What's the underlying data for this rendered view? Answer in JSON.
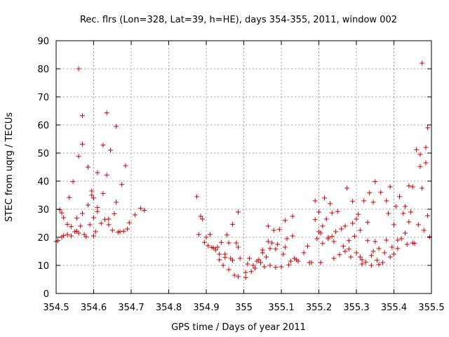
{
  "chart_data": {
    "type": "scatter",
    "title": "Rec. flrs (Lon=328, Lat=39, h=HE), days 354-355, 2011, window 002",
    "xlabel": "GPS time / Days of year 2011",
    "ylabel": "STEC from uqrg / TECUs",
    "xlim": [
      354.5,
      355.5
    ],
    "ylim": [
      0,
      90
    ],
    "x_ticks": [
      354.5,
      354.6,
      354.7,
      354.8,
      354.9,
      355,
      355.1,
      355.2,
      355.3,
      355.4,
      355.5
    ],
    "x_tick_labels": [
      "354.5",
      "354.6",
      "354.7",
      "354.8",
      "354.9",
      "355",
      "355.1",
      "355.2",
      "355.3",
      "355.4",
      "355.5"
    ],
    "y_ticks": [
      0,
      10,
      20,
      30,
      40,
      50,
      60,
      70,
      80,
      90
    ],
    "y_tick_labels": [
      "0",
      "10",
      "20",
      "30",
      "40",
      "50",
      "60",
      "70",
      "80",
      "90"
    ],
    "grid": true,
    "marker": "plus",
    "color": "#cc0000",
    "series": [
      {
        "points": [
          [
            354.5,
            18.5
          ],
          [
            354.505,
            18.8
          ],
          [
            354.51,
            29.8
          ],
          [
            354.515,
            28.7
          ],
          [
            354.515,
            20.1
          ],
          [
            354.52,
            27
          ],
          [
            354.52,
            20.6
          ],
          [
            354.53,
            21
          ],
          [
            354.53,
            24.6
          ],
          [
            354.535,
            34.2
          ],
          [
            354.54,
            20.5
          ],
          [
            354.54,
            23.8
          ],
          [
            354.545,
            39.8
          ],
          [
            354.55,
            22
          ],
          [
            354.555,
            26.8
          ],
          [
            354.555,
            22.2
          ],
          [
            354.56,
            80
          ],
          [
            354.56,
            48.8
          ],
          [
            354.56,
            21.5
          ],
          [
            354.565,
            24
          ],
          [
            354.57,
            63.3
          ],
          [
            354.57,
            53.2
          ],
          [
            354.57,
            28.5
          ],
          [
            354.575,
            21
          ],
          [
            354.58,
            20.2
          ],
          [
            354.585,
            45
          ],
          [
            354.585,
            31.5
          ],
          [
            354.59,
            24.5
          ],
          [
            354.595,
            35
          ],
          [
            354.595,
            36.5
          ],
          [
            354.6,
            34
          ],
          [
            354.6,
            20.5
          ],
          [
            354.6,
            27
          ],
          [
            354.605,
            22
          ],
          [
            354.61,
            30.6
          ],
          [
            354.61,
            43
          ],
          [
            354.61,
            29.2
          ],
          [
            354.62,
            25
          ],
          [
            354.625,
            52.8
          ],
          [
            354.625,
            35.6
          ],
          [
            354.63,
            26.3
          ],
          [
            354.635,
            64.3
          ],
          [
            354.635,
            42.2
          ],
          [
            354.64,
            24.5
          ],
          [
            354.64,
            26.5
          ],
          [
            354.645,
            51
          ],
          [
            354.65,
            22.5
          ],
          [
            354.655,
            28.4
          ],
          [
            354.66,
            59.5
          ],
          [
            354.66,
            32.5
          ],
          [
            354.665,
            21.8
          ],
          [
            354.67,
            22
          ],
          [
            354.675,
            38.8
          ],
          [
            354.68,
            22.2
          ],
          [
            354.685,
            45.5
          ],
          [
            354.69,
            23
          ],
          [
            354.695,
            25.2
          ],
          [
            354.71,
            28
          ],
          [
            354.725,
            30.3
          ],
          [
            354.735,
            29.6
          ],
          [
            354.875,
            34.5
          ],
          [
            354.88,
            21
          ],
          [
            354.885,
            27.5
          ],
          [
            354.89,
            26.5
          ],
          [
            354.895,
            18.2
          ],
          [
            354.9,
            20
          ],
          [
            354.905,
            17
          ],
          [
            354.91,
            21
          ],
          [
            354.915,
            16.4
          ],
          [
            354.92,
            16.2
          ],
          [
            354.925,
            15.5
          ],
          [
            354.93,
            16.5
          ],
          [
            354.935,
            14
          ],
          [
            354.935,
            12
          ],
          [
            354.94,
            18.2
          ],
          [
            354.945,
            10
          ],
          [
            354.95,
            14
          ],
          [
            354.95,
            12.8
          ],
          [
            354.955,
            20.8
          ],
          [
            354.96,
            18
          ],
          [
            354.96,
            8.5
          ],
          [
            354.965,
            12.5
          ],
          [
            354.97,
            24.6
          ],
          [
            354.97,
            11.8
          ],
          [
            354.975,
            6.5
          ],
          [
            354.98,
            18
          ],
          [
            354.985,
            29
          ],
          [
            354.985,
            16.5
          ],
          [
            354.985,
            6
          ],
          [
            354.99,
            12.5
          ],
          [
            355.005,
            5.7
          ],
          [
            355.005,
            7.5
          ],
          [
            355.01,
            10.5
          ],
          [
            355.015,
            12.5
          ],
          [
            355.02,
            7.8
          ],
          [
            355.025,
            10
          ],
          [
            355.03,
            9
          ],
          [
            355.035,
            11.5
          ],
          [
            355.04,
            12
          ],
          [
            355.045,
            11
          ],
          [
            355.05,
            14.5
          ],
          [
            355.05,
            15.5
          ],
          [
            355.055,
            9.5
          ],
          [
            355.06,
            13
          ],
          [
            355.065,
            24
          ],
          [
            355.065,
            18.5
          ],
          [
            355.07,
            16
          ],
          [
            355.07,
            10
          ],
          [
            355.075,
            18
          ],
          [
            355.08,
            22.5
          ],
          [
            355.085,
            15.8
          ],
          [
            355.085,
            9.3
          ],
          [
            355.09,
            17.5
          ],
          [
            355.095,
            22.8
          ],
          [
            355.1,
            9.5
          ],
          [
            355.105,
            14
          ],
          [
            355.11,
            16.5
          ],
          [
            355.11,
            26
          ],
          [
            355.115,
            19.5
          ],
          [
            355.12,
            10.2
          ],
          [
            355.125,
            11.5
          ],
          [
            355.13,
            20.5
          ],
          [
            355.13,
            27.5
          ],
          [
            355.135,
            12.5
          ],
          [
            355.14,
            12
          ],
          [
            355.145,
            11.5
          ],
          [
            355.16,
            14.5
          ],
          [
            355.17,
            16.8
          ],
          [
            355.175,
            11
          ],
          [
            355.18,
            11
          ],
          [
            355.19,
            26.3
          ],
          [
            355.19,
            33
          ],
          [
            355.195,
            19.5
          ],
          [
            355.2,
            22
          ],
          [
            355.2,
            29
          ],
          [
            355.205,
            11
          ],
          [
            355.205,
            21.5
          ],
          [
            355.21,
            17.8
          ],
          [
            355.21,
            24
          ],
          [
            355.215,
            34
          ],
          [
            355.22,
            26.5
          ],
          [
            355.225,
            19.5
          ],
          [
            355.225,
            20
          ],
          [
            355.23,
            32
          ],
          [
            355.235,
            20.3
          ],
          [
            355.235,
            28.7
          ],
          [
            355.24,
            12.5
          ],
          [
            355.24,
            18.5
          ],
          [
            355.245,
            22
          ],
          [
            355.25,
            29.2
          ],
          [
            355.255,
            13.8
          ],
          [
            355.26,
            23
          ],
          [
            355.265,
            16.8
          ],
          [
            355.27,
            15
          ],
          [
            355.27,
            24
          ],
          [
            355.275,
            37.5
          ],
          [
            355.28,
            15.8
          ],
          [
            355.28,
            18.8
          ],
          [
            355.285,
            13
          ],
          [
            355.29,
            25
          ],
          [
            355.29,
            32.8
          ],
          [
            355.295,
            20.4
          ],
          [
            355.3,
            14.5
          ],
          [
            355.3,
            26.5
          ],
          [
            355.305,
            28.2
          ],
          [
            355.31,
            13
          ],
          [
            355.31,
            22.5
          ],
          [
            355.315,
            10.5
          ],
          [
            355.315,
            12
          ],
          [
            355.32,
            33
          ],
          [
            355.325,
            11.2
          ],
          [
            355.33,
            25.3
          ],
          [
            355.33,
            18.8
          ],
          [
            355.335,
            35.8
          ],
          [
            355.34,
            10
          ],
          [
            355.34,
            13.5
          ],
          [
            355.345,
            15
          ],
          [
            355.345,
            32.5
          ],
          [
            355.35,
            39.8
          ],
          [
            355.35,
            18.5
          ],
          [
            355.355,
            11.8
          ],
          [
            355.36,
            16
          ],
          [
            355.36,
            10.3
          ],
          [
            355.365,
            36
          ],
          [
            355.37,
            11
          ],
          [
            355.375,
            14.5
          ],
          [
            355.38,
            33
          ],
          [
            355.38,
            19
          ],
          [
            355.385,
            28.5
          ],
          [
            355.39,
            13
          ],
          [
            355.39,
            38
          ],
          [
            355.395,
            16.5
          ],
          [
            355.4,
            14
          ],
          [
            355.4,
            24.5
          ],
          [
            355.405,
            31
          ],
          [
            355.41,
            16
          ],
          [
            355.41,
            19
          ],
          [
            355.415,
            34.5
          ],
          [
            355.42,
            19.5
          ],
          [
            355.425,
            28.5
          ],
          [
            355.43,
            31
          ],
          [
            355.43,
            21.5
          ],
          [
            355.435,
            17.5
          ],
          [
            355.44,
            38.3
          ],
          [
            355.44,
            25.5
          ],
          [
            355.445,
            29
          ],
          [
            355.45,
            38
          ],
          [
            355.45,
            18
          ],
          [
            355.455,
            17.8
          ],
          [
            355.46,
            51.2
          ],
          [
            355.465,
            24.5
          ],
          [
            355.47,
            49.5
          ],
          [
            355.47,
            45.2
          ],
          [
            355.475,
            37.5
          ],
          [
            355.475,
            82
          ],
          [
            355.48,
            22.5
          ],
          [
            355.485,
            52
          ],
          [
            355.485,
            46.5
          ],
          [
            355.49,
            27.7
          ],
          [
            355.49,
            59
          ],
          [
            355.495,
            20.2
          ]
        ]
      }
    ]
  }
}
